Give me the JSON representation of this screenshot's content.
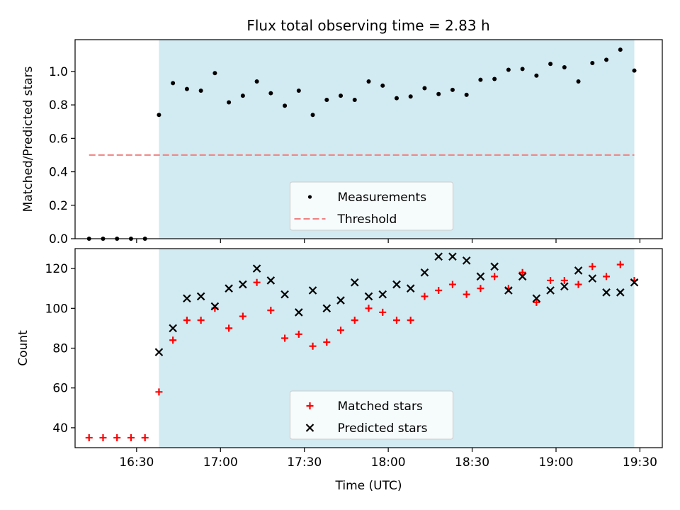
{
  "title": "Flux total observing time = 2.83 h",
  "colors": {
    "shade": "#add8e6",
    "measurement": "#000000",
    "threshold": "#f08080",
    "matched": "#ff0000",
    "predicted": "#000000"
  },
  "chart_data": [
    {
      "type": "scatter",
      "ylabel": "Matched/Predicted stars",
      "xlabel": "",
      "ylim": [
        0,
        1.19
      ],
      "yticks": [
        "0.0",
        "0.2",
        "0.4",
        "0.6",
        "0.8",
        "1.0"
      ],
      "x_range": [
        "16:08",
        "19:38"
      ],
      "shaded_span": [
        "16:38",
        "19:28"
      ],
      "legend": {
        "placement": "lower center",
        "entries": [
          "Measurements",
          "Threshold"
        ]
      },
      "threshold": {
        "name": "Threshold",
        "value": 0.5,
        "from": "16:13",
        "to": "19:28"
      },
      "series": [
        {
          "name": "Measurements",
          "marker": "dot",
          "x": [
            "16:13",
            "16:18",
            "16:23",
            "16:28",
            "16:33",
            "16:38",
            "16:43",
            "16:48",
            "16:53",
            "16:58",
            "17:03",
            "17:08",
            "17:13",
            "17:18",
            "17:23",
            "17:28",
            "17:33",
            "17:38",
            "17:43",
            "17:48",
            "17:53",
            "17:58",
            "18:03",
            "18:08",
            "18:13",
            "18:18",
            "18:23",
            "18:28",
            "18:33",
            "18:38",
            "18:43",
            "18:48",
            "18:53",
            "18:58",
            "19:03",
            "19:08",
            "19:13",
            "19:18",
            "19:23",
            "19:28"
          ],
          "y": [
            0,
            0,
            0,
            0,
            0,
            0.74,
            0.93,
            0.895,
            0.885,
            0.99,
            0.815,
            0.855,
            0.94,
            0.87,
            0.795,
            0.885,
            0.74,
            0.83,
            0.855,
            0.83,
            0.94,
            0.915,
            0.84,
            0.85,
            0.9,
            0.865,
            0.89,
            0.86,
            0.95,
            0.955,
            1.01,
            1.015,
            0.975,
            1.045,
            1.025,
            0.94,
            1.05,
            1.07,
            1.13,
            1.005
          ]
        }
      ]
    },
    {
      "type": "scatter",
      "ylabel": "Count",
      "xlabel": "Time (UTC)",
      "ylim": [
        30,
        130
      ],
      "yticks": [
        "40",
        "60",
        "80",
        "100",
        "120"
      ],
      "xticks": [
        "16:30",
        "17:00",
        "17:30",
        "18:00",
        "18:30",
        "19:00",
        "19:30"
      ],
      "x_range": [
        "16:08",
        "19:38"
      ],
      "shaded_span": [
        "16:38",
        "19:28"
      ],
      "legend": {
        "placement": "lower center",
        "entries": [
          "Matched stars",
          "Predicted stars"
        ]
      },
      "series": [
        {
          "name": "Matched stars",
          "marker": "plus",
          "x": [
            "16:13",
            "16:18",
            "16:23",
            "16:28",
            "16:33",
            "16:38",
            "16:43",
            "16:48",
            "16:53",
            "16:58",
            "17:03",
            "17:08",
            "17:13",
            "17:18",
            "17:23",
            "17:28",
            "17:33",
            "17:38",
            "17:43",
            "17:48",
            "17:53",
            "17:58",
            "18:03",
            "18:08",
            "18:13",
            "18:18",
            "18:23",
            "18:28",
            "18:33",
            "18:38",
            "18:43",
            "18:48",
            "18:53",
            "18:58",
            "19:03",
            "19:08",
            "19:13",
            "19:18",
            "19:23",
            "19:28"
          ],
          "y": [
            35,
            35,
            35,
            35,
            35,
            58,
            84,
            94,
            94,
            100,
            90,
            96,
            113,
            99,
            85,
            87,
            81,
            83,
            89,
            94,
            100,
            98,
            94,
            94,
            106,
            109,
            112,
            107,
            110,
            116,
            110,
            118,
            103,
            114,
            114,
            112,
            121,
            116,
            122,
            114
          ]
        },
        {
          "name": "Predicted stars",
          "marker": "x",
          "x": [
            "16:38",
            "16:43",
            "16:48",
            "16:53",
            "16:58",
            "17:03",
            "17:08",
            "17:13",
            "17:18",
            "17:23",
            "17:28",
            "17:33",
            "17:38",
            "17:43",
            "17:48",
            "17:53",
            "17:58",
            "18:03",
            "18:08",
            "18:13",
            "18:18",
            "18:23",
            "18:28",
            "18:33",
            "18:38",
            "18:43",
            "18:48",
            "18:53",
            "18:58",
            "19:03",
            "19:08",
            "19:13",
            "19:18",
            "19:23",
            "19:28"
          ],
          "y": [
            78,
            90,
            105,
            106,
            101,
            110,
            112,
            120,
            114,
            107,
            98,
            109,
            100,
            104,
            113,
            106,
            107,
            112,
            110,
            118,
            126,
            126,
            124,
            116,
            121,
            109,
            116,
            105,
            109,
            111,
            119,
            115,
            108,
            108,
            113
          ]
        }
      ]
    }
  ]
}
